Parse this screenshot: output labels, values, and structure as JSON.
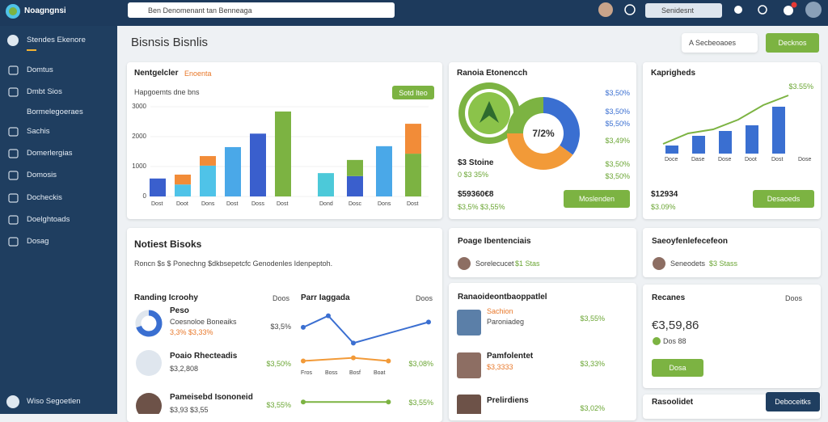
{
  "header": {
    "brand": "Noagngnsi",
    "search": "Ben Denomenant tan Benneaga",
    "search_small": "Senidesnt"
  },
  "sidebar": {
    "items": [
      "Stendes Ekenore",
      "Domtus",
      "Dmbt Sios",
      "Bormelegoeraes",
      "Sachis",
      "Domerlergias",
      "Domosis",
      "Docheckis",
      "Doelghtoads",
      "Dosag"
    ],
    "footer": "Wiso Segoetlen"
  },
  "page": {
    "title": "Bisnsis Bisnlis",
    "filter": "A  Secbeoaoes",
    "action": "Decknos"
  },
  "sales": {
    "title": "Nentgelcler",
    "tag": "Enoenta",
    "caption": "Hapgoemts dne bns",
    "button": "Sotd lteo",
    "ylim": [
      0,
      3000
    ],
    "yticks": [
      0,
      1000,
      2000,
      3000
    ],
    "categories": [
      "Dost",
      "Doot",
      "Dons",
      "Dost",
      "Doss",
      "Dost",
      "Dond",
      "Dosc",
      "Dons",
      "Dost"
    ],
    "base": {
      "values": [
        600,
        400,
        1030,
        1650,
        2100,
        2840,
        780,
        680,
        1680,
        1430
      ],
      "colors": [
        "#3a5fcd",
        "#4fc3e8",
        "#4fc3e8",
        "#4aa8e8",
        "#3a5fcd",
        "#7cb342",
        "#4cc9d9",
        "#3a5fcd",
        "#4aa8e8",
        "#7cb342"
      ]
    },
    "top": {
      "values": [
        null,
        330,
        320,
        null,
        null,
        null,
        null,
        540,
        null,
        1000
      ],
      "colors": [
        null,
        "#f28c38",
        "#f28c38",
        null,
        null,
        null,
        null,
        "#7cb342",
        null,
        "#f28c38"
      ]
    }
  },
  "donut": {
    "title": "Ranoia Etonencch",
    "center": "7/2%",
    "segments": [
      {
        "value": 35,
        "color": "#3a6fd1"
      },
      {
        "value": 40,
        "color": "#f29a38"
      },
      {
        "value": 25,
        "color": "#7cb342"
      }
    ],
    "legend": [
      "$3,50%",
      "$3,50%",
      "$5,50%",
      "$3,49%",
      "$3,50%",
      "$3,50%"
    ],
    "name": "$3 Stoine",
    "stat": "0 $3 35%",
    "total": "$59360€8",
    "change": "$3,5% $3,55%",
    "button": "Moslenden"
  },
  "trend": {
    "title": "Kaprigheds",
    "value": "$3.55%",
    "ylim": [
      0,
      80
    ],
    "bars": [
      10,
      22,
      28,
      35,
      58
    ],
    "line": [
      12,
      25,
      30,
      42,
      60,
      72
    ],
    "bar_color": "#3a6fd1",
    "line_color": "#7cb342",
    "xlabels": [
      "Doce",
      "Dase",
      "Dose",
      "Doot",
      "Dost",
      "Dose"
    ],
    "total": "$12934",
    "change": "$3.09%",
    "button": "Desaoeds"
  },
  "books": {
    "title": "Notiest Bisoks",
    "description": "Roncn $s $ Ponechng $dkbsepetcfc Genodenles Idenpeptoh.",
    "ranking": {
      "title": "Randing Icroohy",
      "more": "Doos",
      "items": [
        {
          "name": "Peso",
          "sub": "Coesnoloe Boneaiks",
          "stat": "3,3% $3,33%",
          "value": "$3,5%",
          "share": [
            70,
            30
          ]
        },
        {
          "name": "Poaio Rhecteadis",
          "sub": "$3,2,808",
          "value": "$3,50%"
        },
        {
          "name": "Pameisebd Isononeid",
          "sub": "$3,93 $3,55",
          "value": "$3,55%"
        }
      ]
    },
    "lines": {
      "title": "Parr Iaggada",
      "more": "Doos",
      "xlim": [
        0,
        5
      ],
      "ylim": [
        0,
        100
      ],
      "series": [
        {
          "color": "#3b6fd1",
          "x": [
            0,
            1,
            2,
            5
          ],
          "values": [
            77,
            88,
            62,
            82
          ]
        },
        {
          "color": "#f29a38",
          "x": [
            0,
            2,
            3.4
          ],
          "values": [
            45,
            48,
            45
          ]
        },
        {
          "color": "#7cb342",
          "x": [
            0,
            3.4
          ],
          "values": [
            6,
            6
          ]
        }
      ],
      "xlabels": [
        "Fros",
        "Boss",
        "Bosf",
        "Boat"
      ],
      "value1": "$3,08%",
      "value2": "$3,55%"
    }
  },
  "people": {
    "title": "Poage Ibentenciais",
    "person": "Sorelecucet",
    "stat": "$1 Stas"
  },
  "team": {
    "title": "Ranaoideontbaoppatlel",
    "items": [
      {
        "name": "Sachion",
        "sub": "Paroniadeg",
        "value": "$3,55%"
      },
      {
        "name": "Pamfolentet",
        "sub": "$3,3333",
        "value": "$3,33%"
      },
      {
        "name": "Prelirdiens",
        "value": "$3,02%"
      }
    ]
  },
  "profile": {
    "title": "Saeoyfenlefecefeon",
    "person": "Seneodets",
    "stat": "$3 Stass"
  },
  "recent": {
    "title": "Recanes",
    "more": "Doos",
    "amount": "€3,59,86",
    "note": "Dos 88",
    "button": "Dosa"
  },
  "bottom": {
    "title": "Rasoolidet",
    "button": "Deboceitks"
  }
}
